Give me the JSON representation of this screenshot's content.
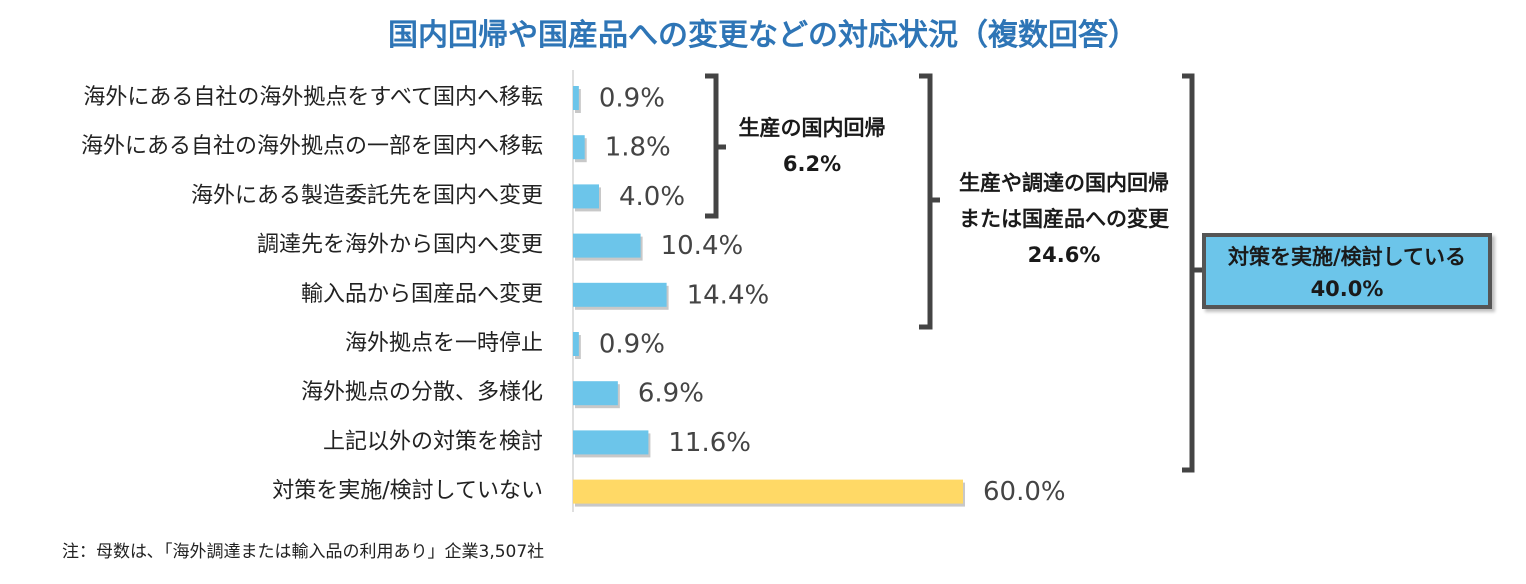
{
  "chart_data": {
    "type": "bar",
    "orientation": "horizontal",
    "title": "国内回帰や国産品への変更などの対応状況（複数回答）",
    "categories": [
      "海外にある自社の海外拠点をすべて国内へ移転",
      "海外にある自社の海外拠点の一部を国内へ移転",
      "海外にある製造委託先を国内へ変更",
      "調達先を海外から国内へ変更",
      "輸入品から国産品へ変更",
      "海外拠点を一時停止",
      "海外拠点の分散、多様化",
      "上記以外の対策を検討",
      "対策を実施/検討していない"
    ],
    "values": [
      0.9,
      1.8,
      4.0,
      10.4,
      14.4,
      0.9,
      6.9,
      11.6,
      60.0
    ],
    "value_labels": [
      "0.9%",
      "1.8%",
      "4.0%",
      "10.4%",
      "14.4%",
      "0.9%",
      "6.9%",
      "11.6%",
      "60.0%"
    ],
    "xlim": [
      0,
      60
    ],
    "bar_colors": [
      "#6cc5ea",
      "#6cc5ea",
      "#6cc5ea",
      "#6cc5ea",
      "#6cc5ea",
      "#6cc5ea",
      "#6cc5ea",
      "#6cc5ea",
      "#ffd966"
    ],
    "annotations": {
      "domestic_return": {
        "line1": "生産の国内回帰",
        "line2": "6.2%"
      },
      "domestic_or_product": {
        "line1": "生産や調達の国内回帰",
        "line2": "または国産品への変更",
        "line3": "24.6%"
      },
      "total": {
        "line1": "対策を実施/検討している",
        "line2": "40.0%"
      }
    },
    "footnote": "注：母数は､「海外調達または輸入品の利用あり」企業3,507社"
  },
  "colors": {
    "title": "#2e75b6",
    "bar": "#6cc5ea",
    "bar_none": "#ffd966",
    "bracket": "#444444",
    "box_fill": "#6cc5ea"
  }
}
